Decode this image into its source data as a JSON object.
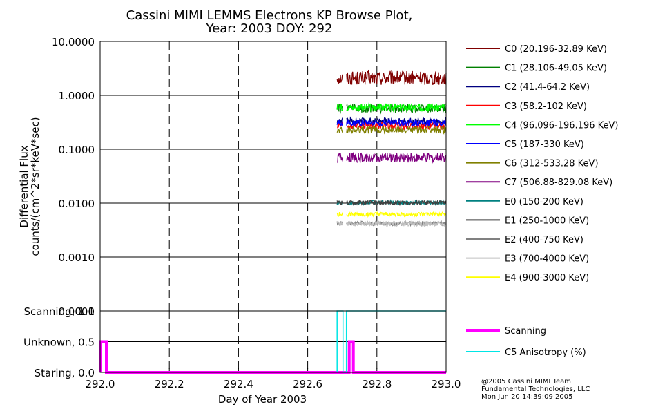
{
  "chart_data": [
    {
      "type": "line",
      "title": "Cassini MIMI LEMMS Electrons KP Browse Plot,",
      "subtitle": "Year: 2003 DOY: 292",
      "ylabel_line1": "Differential Flux",
      "ylabel_line2": "counts/(cm^2*sr*keV*sec)",
      "ylog": true,
      "ylim": [
        0.0001,
        10.0
      ],
      "xlim": [
        292.0,
        293.0
      ],
      "y_tick_labels": [
        "10.0000",
        "1.0000",
        "0.1000",
        "0.0100",
        "0.0010",
        "0.0001"
      ],
      "y_tick_values": [
        10,
        1,
        0.1,
        0.01,
        0.001,
        0.0001
      ],
      "x_gridlines": [
        292.2,
        292.4,
        292.6,
        292.8
      ],
      "data_start": 292.685,
      "data_end": 293.0,
      "series": [
        {
          "name": "C0 (20.196-32.89 KeV)",
          "color": "#800000",
          "level": 2.1,
          "noise": 0.13
        },
        {
          "name": "C1 (28.106-49.05 KeV)",
          "color": "#008000",
          "level": 0.57,
          "noise": 0.08
        },
        {
          "name": "C2 (41.4-64.2 KeV)",
          "color": "#000080",
          "level": 0.33,
          "noise": 0.07
        },
        {
          "name": "C3 (58.2-102 KeV)",
          "color": "#ff0000",
          "level": 0.27,
          "noise": 0.07
        },
        {
          "name": "C4 (96.096-196.196 KeV)",
          "color": "#00ff00",
          "level": 0.6,
          "noise": 0.07
        },
        {
          "name": "C5 (187-330 KeV)",
          "color": "#0000ff",
          "level": 0.31,
          "noise": 0.06
        },
        {
          "name": "C6 (312-533.28 KeV)",
          "color": "#808000",
          "level": 0.23,
          "noise": 0.07
        },
        {
          "name": "C7 (506.88-829.08 KeV)",
          "color": "#800080",
          "level": 0.07,
          "noise": 0.09
        },
        {
          "name": "E0 (150-200 KeV)",
          "color": "#008080",
          "level": 0.0102,
          "noise": 0.04
        },
        {
          "name": "E1 (250-1000 KeV)",
          "color": "#404040",
          "level": 0.0102,
          "noise": 0.04
        },
        {
          "name": "E2 (400-750 KeV)",
          "color": "#808080",
          "level": 0.0042,
          "noise": 0.04
        },
        {
          "name": "E3 (700-4000 KeV)",
          "color": "#c0c0c0",
          "level": 0.0041,
          "noise": 0.04
        },
        {
          "name": "E4 (900-3000 KeV)",
          "color": "#ffff00",
          "level": 0.0062,
          "noise": 0.04
        }
      ]
    },
    {
      "type": "line",
      "xlabel": "Day of Year 2003",
      "xlim": [
        292.0,
        293.0
      ],
      "ylim": [
        0.0,
        1.0
      ],
      "x_tick_labels": [
        "292.0",
        "292.2",
        "292.4",
        "292.6",
        "292.8",
        "293.0"
      ],
      "x_tick_values": [
        292.0,
        292.2,
        292.4,
        292.6,
        292.8,
        293.0
      ],
      "y_tick_labels": [
        "Scanning, 1.0",
        "Unknown, 0.5",
        "Staring, 0.0"
      ],
      "y_tick_values": [
        1.0,
        0.5,
        0.0
      ],
      "series": [
        {
          "name": "Scanning",
          "color": "#ff00ff",
          "points": [
            [
              292.0,
              0.0
            ],
            [
              292.0,
              0.5
            ],
            [
              292.018,
              0.5
            ],
            [
              292.018,
              0.0
            ],
            [
              292.72,
              0.0
            ],
            [
              292.72,
              0.5
            ],
            [
              292.732,
              0.5
            ],
            [
              292.732,
              0.0
            ],
            [
              293.0,
              0.0
            ]
          ]
        },
        {
          "name": "C5 Anisotropy (%)",
          "color": "#00e5e5",
          "points": [
            [
              292.685,
              0.0
            ],
            [
              292.685,
              1.0
            ],
            [
              292.702,
              1.0
            ],
            [
              292.702,
              0.0
            ],
            [
              292.712,
              0.0
            ],
            [
              292.712,
              1.0
            ],
            [
              293.0,
              1.0
            ]
          ]
        }
      ]
    }
  ],
  "footer": {
    "line1": "@2005 Cassini MIMI Team",
    "line2": "Fundamental Technologies, LLC",
    "line3": "Mon Jun 20 14:39:09 2005"
  }
}
